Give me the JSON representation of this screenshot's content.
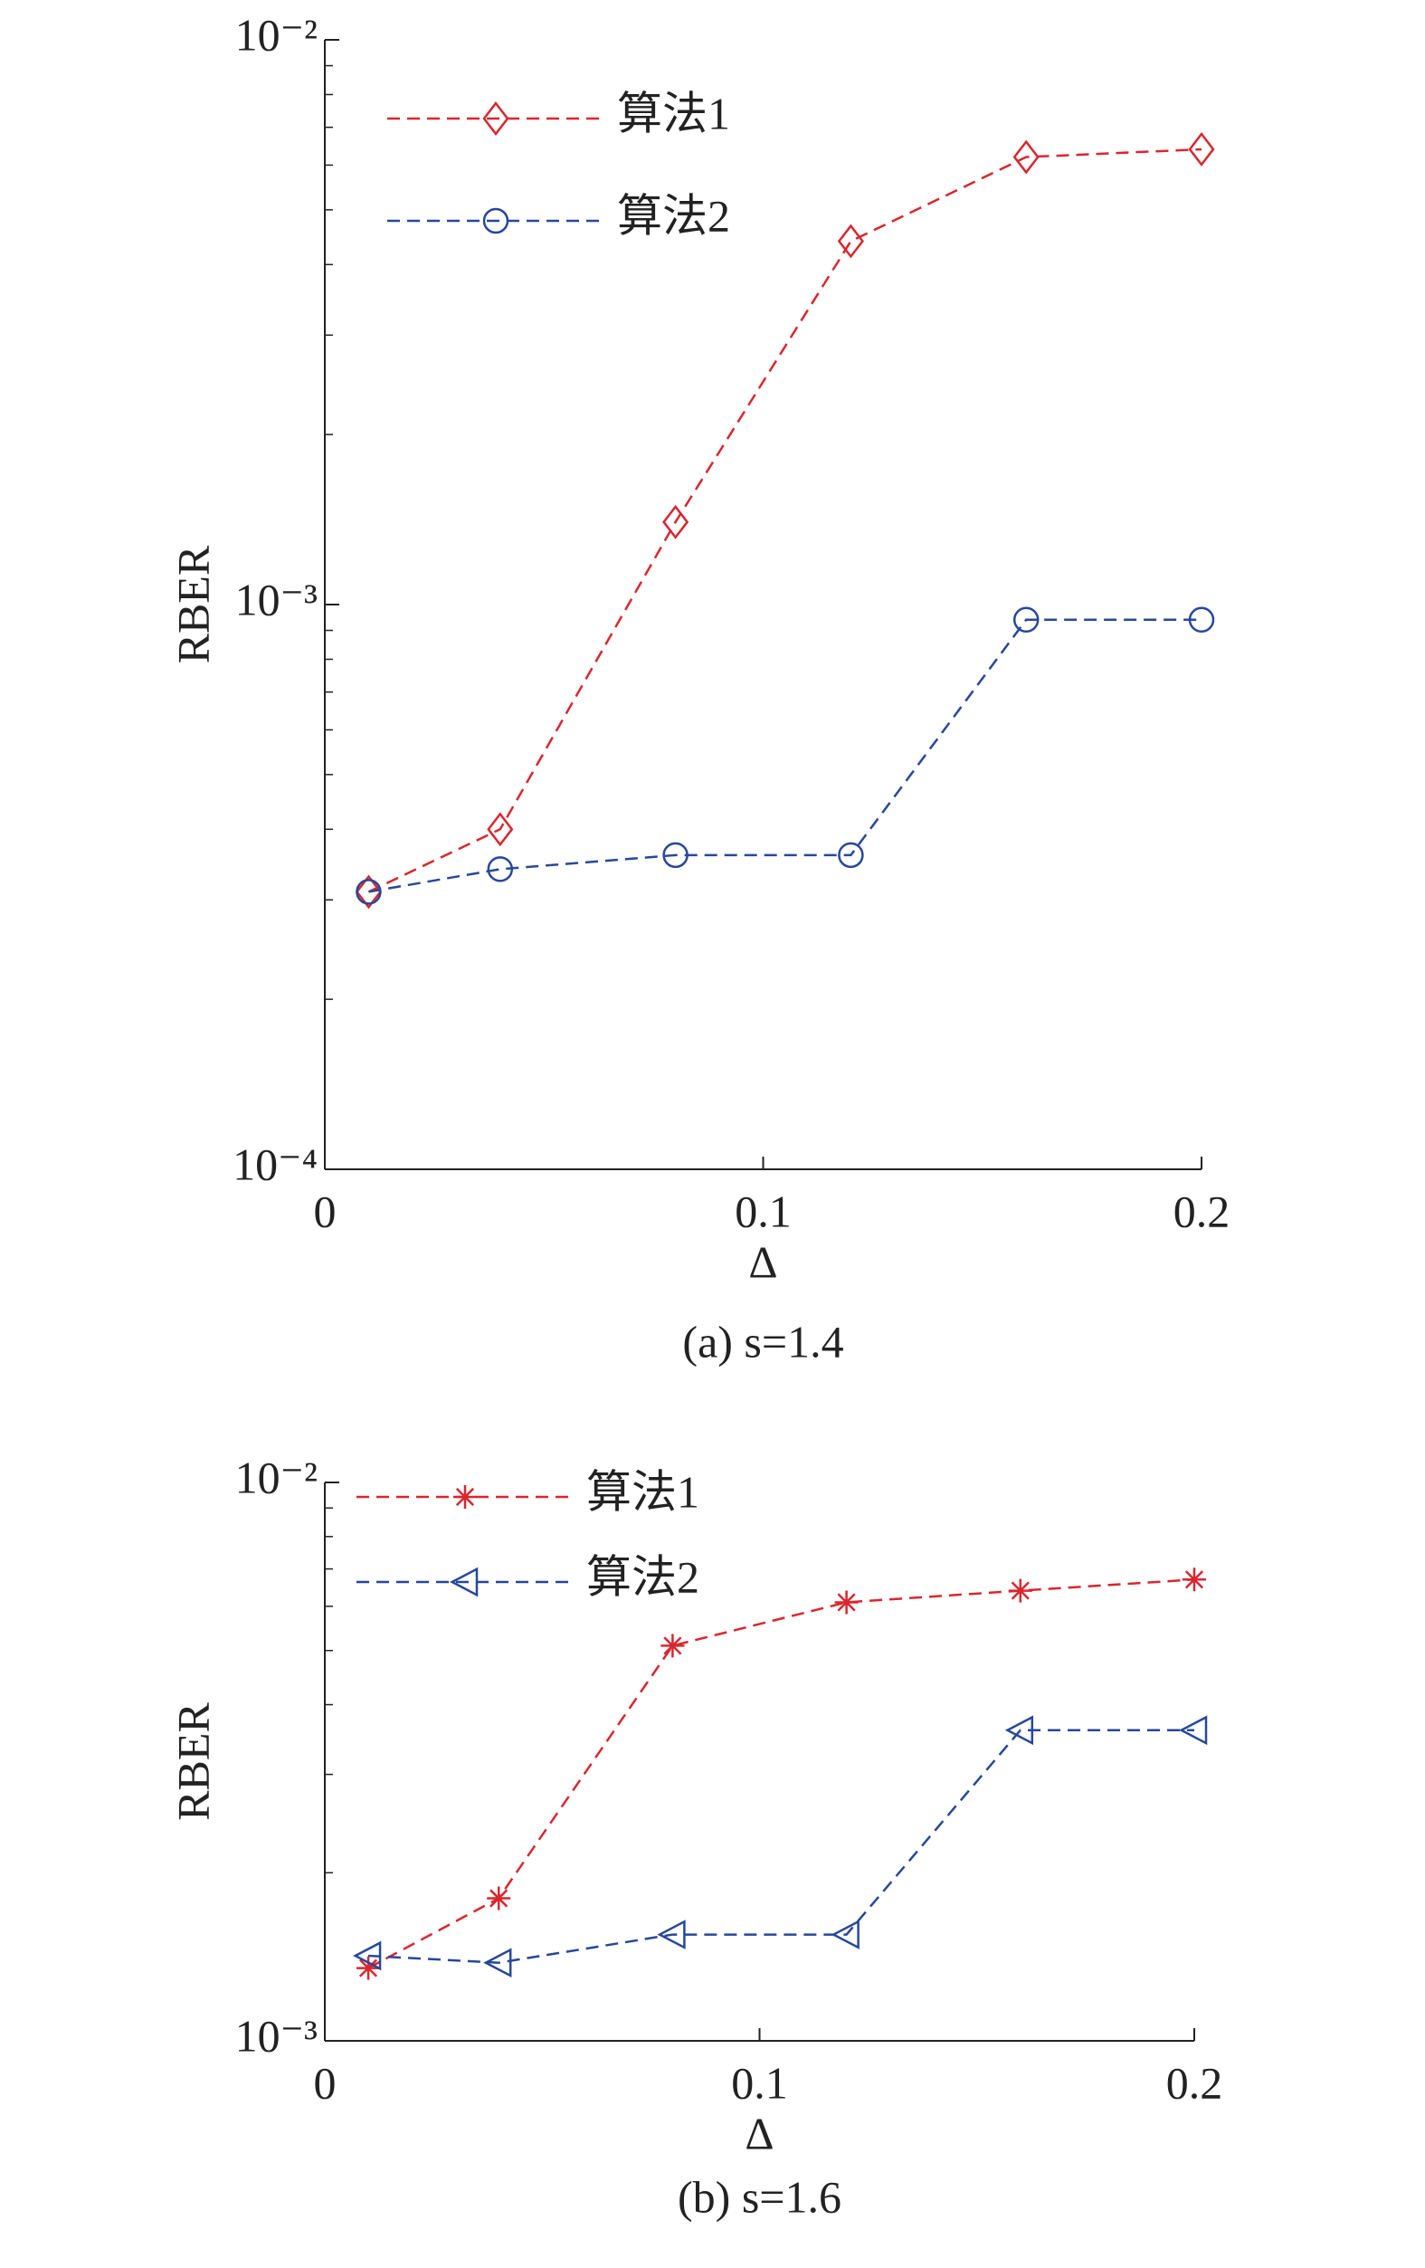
{
  "chart_data": [
    {
      "type": "line",
      "caption": "(a) s=1.4",
      "xlabel": "Δ",
      "ylabel": "RBER",
      "log_y": true,
      "legend": "upper left",
      "grid": false,
      "xlim": [
        0,
        0.2
      ],
      "xticks": [
        0,
        0.1,
        0.2
      ],
      "ylim": [
        0.0001,
        0.01
      ],
      "yticks": [
        {
          "value": 0.0001,
          "label": "10⁻⁴"
        },
        {
          "value": 0.001,
          "label": "10⁻³"
        },
        {
          "value": 0.01,
          "label": "10⁻²"
        }
      ],
      "yminorticks": [
        0.0002,
        0.0003,
        0.0004,
        0.0005,
        0.0006,
        0.0007,
        0.0008,
        0.0009,
        0.002,
        0.003,
        0.004,
        0.005,
        0.006,
        0.007,
        0.008,
        0.009
      ],
      "x": [
        0.01,
        0.04,
        0.08,
        0.12,
        0.16,
        0.2
      ],
      "series": [
        {
          "name": "算法1",
          "color": "#d9262e",
          "marker": "diamond",
          "values": [
            0.00031,
            0.0004,
            0.0014,
            0.0044,
            0.0062,
            0.0064
          ]
        },
        {
          "name": "算法2",
          "color": "#27479a",
          "marker": "circle",
          "values": [
            0.00031,
            0.00034,
            0.00036,
            0.00036,
            0.00094,
            0.00094
          ]
        }
      ]
    },
    {
      "type": "line",
      "caption": "(b) s=1.6",
      "xlabel": "Δ",
      "ylabel": "RBER",
      "log_y": true,
      "legend": "upper left",
      "grid": false,
      "xlim": [
        0,
        0.2
      ],
      "xticks": [
        0,
        0.1,
        0.2
      ],
      "ylim": [
        0.001,
        0.01
      ],
      "yticks": [
        {
          "value": 0.001,
          "label": "10⁻³"
        },
        {
          "value": 0.01,
          "label": "10⁻²"
        }
      ],
      "yminorticks": [
        0.002,
        0.003,
        0.004,
        0.005,
        0.006,
        0.007,
        0.008,
        0.009
      ],
      "x": [
        0.01,
        0.04,
        0.08,
        0.12,
        0.16,
        0.2
      ],
      "series": [
        {
          "name": "算法1",
          "color": "#d9262e",
          "marker": "asterisk",
          "values": [
            0.00135,
            0.0018,
            0.0051,
            0.0061,
            0.0064,
            0.0067
          ]
        },
        {
          "name": "算法2",
          "color": "#27479a",
          "marker": "triangle-left",
          "values": [
            0.00142,
            0.00138,
            0.00155,
            0.00155,
            0.0036,
            0.0036
          ]
        }
      ]
    }
  ]
}
